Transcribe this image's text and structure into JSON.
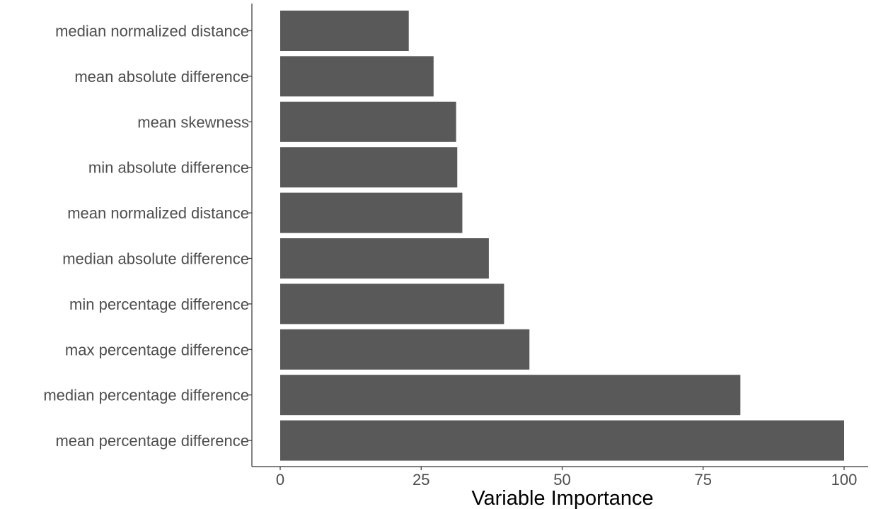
{
  "chart_data": {
    "type": "bar",
    "orientation": "horizontal",
    "categories": [
      "median normalized distance",
      "mean absolute difference",
      "mean skewness",
      "min absolute difference",
      "mean normalized distance",
      "median absolute difference",
      "min percentage difference",
      "max percentage difference",
      "median percentage difference",
      "mean percentage difference"
    ],
    "values": [
      22.8,
      27.2,
      31.2,
      31.4,
      32.3,
      37.0,
      39.7,
      44.2,
      81.6,
      100
    ],
    "xlabel": "Variable Importance",
    "ylabel": "",
    "xlim": [
      0,
      100
    ],
    "xticks": [
      "0",
      "25",
      "50",
      "75",
      "100"
    ],
    "grid": false,
    "bar_color": "#595959",
    "axis_color": "#333333",
    "label_color": "#4d4d4d"
  }
}
